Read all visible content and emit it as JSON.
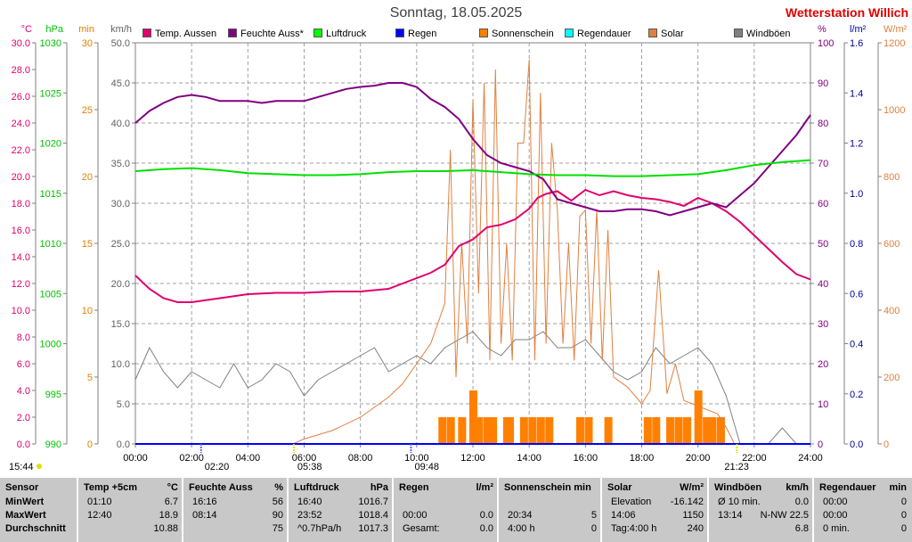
{
  "title": "Sonntag, 18.05.2025",
  "station": "Wetterstation Willich",
  "legend": [
    {
      "label": "Temp. Aussen",
      "color": "#e0006e"
    },
    {
      "label": "Feuchte Auss*",
      "color": "#800080"
    },
    {
      "label": "Luftdruck",
      "color": "#00ff00"
    },
    {
      "label": "Regen",
      "color": "#0000ff"
    },
    {
      "label": "Sonnenschein",
      "color": "#ff8000"
    },
    {
      "label": "Regendauer",
      "color": "#00ffff"
    },
    {
      "label": "Solar",
      "color": "#e08040"
    },
    {
      "label": "Windböen",
      "color": "#808080"
    }
  ],
  "axes": {
    "temp": {
      "unit": "°C",
      "color": "#e0006e",
      "ticks": [
        "0.0",
        "2.0",
        "4.0",
        "6.0",
        "8.0",
        "10.0",
        "12.0",
        "14.0",
        "16.0",
        "18.0",
        "20.0",
        "22.0",
        "24.0",
        "26.0",
        "28.0",
        "30.0"
      ]
    },
    "pressure": {
      "unit": "hPa",
      "color": "#00c000",
      "ticks": [
        "990",
        "995",
        "1000",
        "1005",
        "1010",
        "1015",
        "1020",
        "1025",
        "1030"
      ]
    },
    "minutes": {
      "unit": "min",
      "color": "#e08000",
      "ticks": [
        "0",
        "5",
        "10",
        "15",
        "20",
        "25",
        "30"
      ]
    },
    "wind": {
      "unit": "km/h",
      "color": "#606060",
      "ticks": [
        "0.0",
        "5.0",
        "10.0",
        "15.0",
        "20.0",
        "25.0",
        "30.0",
        "35.0",
        "40.0",
        "45.0",
        "50.0"
      ]
    },
    "humidity": {
      "unit": "%",
      "color": "#800080",
      "ticks": [
        "0",
        "10",
        "20",
        "30",
        "40",
        "50",
        "60",
        "70",
        "80",
        "90",
        "100"
      ]
    },
    "rain": {
      "unit": "l/m²",
      "color": "#0000a0",
      "ticks": [
        "0.0",
        "0.2",
        "0.4",
        "0.6",
        "0.8",
        "1.0",
        "1.2",
        "1.4",
        "1.6"
      ]
    },
    "solar": {
      "unit": "W/m²",
      "color": "#e08040",
      "ticks": [
        "0",
        "200",
        "400",
        "600",
        "800",
        "1000",
        "1200"
      ]
    },
    "time": {
      "ticks": [
        "00:00",
        "02:00",
        "04:00",
        "06:00",
        "08:00",
        "10:00",
        "12:00",
        "14:00",
        "16:00",
        "18:00",
        "20:00",
        "22:00",
        "24:00"
      ]
    }
  },
  "markers": {
    "moon_rise": "02:20",
    "sunrise": "05:38",
    "moon_set": "09:48",
    "sunset": "21:23",
    "moon_left": "15:44"
  },
  "chart_data": {
    "type": "line",
    "x_unit": "hour of day",
    "xlim": [
      0,
      24
    ],
    "series": [
      {
        "name": "Temp. Aussen",
        "axis": "temp",
        "color": "#e0006e",
        "x": [
          0,
          0.5,
          1,
          1.5,
          2,
          3,
          4,
          5,
          6,
          7,
          8,
          9,
          10,
          10.5,
          11,
          11.5,
          12,
          12.5,
          13,
          13.5,
          14,
          14.3,
          14.6,
          15,
          15.5,
          16,
          16.5,
          17,
          17.5,
          18,
          18.5,
          19,
          19.5,
          20,
          20.5,
          21,
          21.5,
          22,
          22.5,
          23,
          23.5,
          24
        ],
        "y": [
          12.6,
          11.6,
          10.9,
          10.6,
          10.6,
          10.9,
          11.2,
          11.3,
          11.3,
          11.4,
          11.4,
          11.6,
          12.4,
          12.8,
          13.4,
          14.8,
          15.3,
          16.2,
          16.4,
          16.8,
          17.6,
          18.4,
          18.7,
          18.9,
          18.2,
          19.0,
          18.6,
          18.9,
          18.6,
          18.4,
          18.3,
          18.1,
          17.8,
          18.4,
          18.0,
          17.4,
          16.6,
          15.6,
          14.6,
          13.6,
          12.7,
          12.3
        ]
      },
      {
        "name": "Feuchte Auss*",
        "axis": "humidity",
        "color": "#800080",
        "x": [
          0,
          0.5,
          1,
          1.5,
          2,
          2.5,
          3,
          4,
          4.5,
          5,
          6,
          6.5,
          7,
          7.5,
          8,
          8.5,
          9,
          9.5,
          10,
          10.5,
          11,
          11.5,
          12,
          12.5,
          13,
          13.5,
          14,
          14.5,
          15,
          15.5,
          16,
          16.5,
          17,
          17.5,
          18,
          18.5,
          19,
          19.5,
          20,
          20.5,
          21,
          21.5,
          22,
          22.5,
          23,
          23.5,
          24
        ],
        "y": [
          80,
          83,
          85,
          86.5,
          87,
          86.5,
          85.5,
          85.5,
          85,
          85.5,
          85.5,
          86.5,
          87.5,
          88.5,
          89,
          89.3,
          90,
          90,
          89,
          86,
          84,
          81,
          76,
          72,
          70,
          69,
          68,
          66,
          61,
          60,
          59,
          58,
          58,
          58.5,
          58.5,
          58,
          57,
          58,
          59,
          60,
          59,
          62,
          65,
          69,
          73,
          77,
          82
        ]
      },
      {
        "name": "Luftdruck",
        "axis": "pressure",
        "color": "#00e000",
        "x": [
          0,
          1,
          2,
          3,
          4,
          5,
          6,
          7,
          8,
          9,
          10,
          11,
          12,
          13,
          14,
          15,
          16,
          17,
          18,
          19,
          20,
          21,
          22,
          23,
          24
        ],
        "y": [
          1017.2,
          1017.4,
          1017.5,
          1017.3,
          1017.0,
          1016.9,
          1016.8,
          1016.8,
          1016.9,
          1017.1,
          1017.2,
          1017.2,
          1017.3,
          1017.1,
          1016.9,
          1016.8,
          1016.8,
          1016.7,
          1016.7,
          1016.8,
          1016.9,
          1017.3,
          1017.8,
          1018.1,
          1018.3
        ]
      },
      {
        "name": "Regen",
        "axis": "rain",
        "color": "#0000ff",
        "x": [
          0,
          24
        ],
        "y": [
          0.0,
          0.0
        ]
      }
    ],
    "sunshine_minutes": {
      "name": "Sonnenschein",
      "axis": "minutes",
      "color": "#ff8000",
      "x": [
        10.9,
        11.2,
        11.6,
        12,
        12.2,
        12.5,
        12.7,
        13.2,
        13.3,
        13.8,
        14.1,
        14.4,
        14.7,
        15.8,
        16.1,
        16.8,
        18.2,
        18.5,
        19,
        19.3,
        19.6,
        20,
        20.3,
        20.5,
        20.8
      ],
      "y": [
        2,
        2,
        2,
        4,
        2,
        2,
        2,
        2,
        2,
        2,
        2,
        2,
        2,
        2,
        2,
        2,
        2,
        2,
        2,
        2,
        2,
        4,
        2,
        2,
        2
      ]
    },
    "solar": {
      "name": "Solar",
      "axis": "solar",
      "color": "#e08040",
      "x": [
        5.6,
        6,
        7,
        8,
        9,
        9.5,
        10,
        10.5,
        11,
        11.2,
        11.4,
        11.6,
        11.8,
        12,
        12.2,
        12.4,
        12.6,
        12.8,
        13,
        13.2,
        13.4,
        13.6,
        13.8,
        14,
        14.2,
        14.4,
        14.6,
        14.8,
        15,
        15.2,
        15.4,
        15.6,
        15.8,
        16,
        16.2,
        16.4,
        16.6,
        16.8,
        17,
        17.5,
        18,
        18.3,
        18.6,
        18.9,
        19.2,
        19.5,
        19.8,
        20.1,
        20.4,
        20.7,
        21,
        21.3
      ],
      "y": [
        0,
        15,
        40,
        80,
        140,
        180,
        240,
        300,
        420,
        880,
        200,
        600,
        300,
        1030,
        450,
        1080,
        250,
        1120,
        300,
        600,
        250,
        900,
        900,
        1150,
        250,
        1050,
        300,
        900,
        700,
        300,
        600,
        250,
        680,
        700,
        300,
        700,
        250,
        640,
        200,
        170,
        120,
        160,
        520,
        150,
        240,
        130,
        120,
        110,
        100,
        90,
        50,
        0
      ]
    },
    "wind_gusts": {
      "name": "Windböen",
      "axis": "wind",
      "color": "#808080",
      "x": [
        0,
        0.5,
        1,
        1.5,
        2,
        2.5,
        3,
        3.5,
        4,
        4.5,
        5,
        5.5,
        6,
        6.5,
        7,
        7.5,
        8,
        8.5,
        9,
        9.5,
        10,
        10.5,
        11,
        11.5,
        12,
        12.5,
        13,
        13.5,
        14,
        14.5,
        15,
        15.5,
        16,
        16.5,
        17,
        17.5,
        18,
        18.5,
        19,
        19.5,
        20,
        20.5,
        21,
        21.5,
        22,
        22.5,
        23,
        23.5,
        24
      ],
      "y": [
        8,
        12,
        9,
        7,
        9,
        8,
        7,
        10,
        7,
        8,
        10,
        9,
        6,
        8,
        9,
        10,
        11,
        12,
        9,
        10,
        11,
        10,
        12,
        13,
        14,
        12,
        11,
        13,
        13,
        14,
        12,
        12,
        13,
        11,
        9,
        8,
        9,
        12,
        10,
        11,
        12,
        10,
        6,
        0,
        0,
        0,
        2,
        0,
        0
      ]
    },
    "rain_total": "0.0",
    "stats": {
      "headers": [
        [
          "Sensor",
          ""
        ],
        [
          "Temp +5cm",
          "°C"
        ],
        [
          "Feuchte Auss",
          "%"
        ],
        [
          "Luftdruck",
          "hPa"
        ],
        [
          "Regen",
          "l/m²"
        ],
        [
          "Sonnenschein min",
          ""
        ],
        [
          "Solar",
          "W/m²"
        ],
        [
          "Windböen",
          "km/h"
        ],
        [
          "Regendauer",
          "min"
        ]
      ],
      "rows": [
        [
          "MinWert",
          "01:10",
          "6.7",
          "16:16",
          "56",
          "16:40",
          "1016.7",
          "",
          "",
          "",
          "",
          "Elevation",
          "-16.142",
          "Ø 10 min.",
          "0.0",
          "00:00",
          "0"
        ],
        [
          "MaxWert",
          "12:40",
          "18.9",
          "08:14",
          "90",
          "23:52",
          "1018.4",
          "00:00",
          "0.0",
          "20:34",
          "5",
          "14:06",
          "1150",
          "13:14",
          "N-NW 22.5",
          "00:00",
          "0"
        ],
        [
          "Durchschnitt",
          "",
          "10.88",
          "",
          "75",
          "^0.7hPa/h",
          "1017.3",
          "Gesamt:",
          "0.0",
          "4:00 h",
          "0",
          "Tag:4:00 h",
          "240",
          "",
          "6.8",
          "0 min.",
          "0"
        ]
      ]
    }
  }
}
